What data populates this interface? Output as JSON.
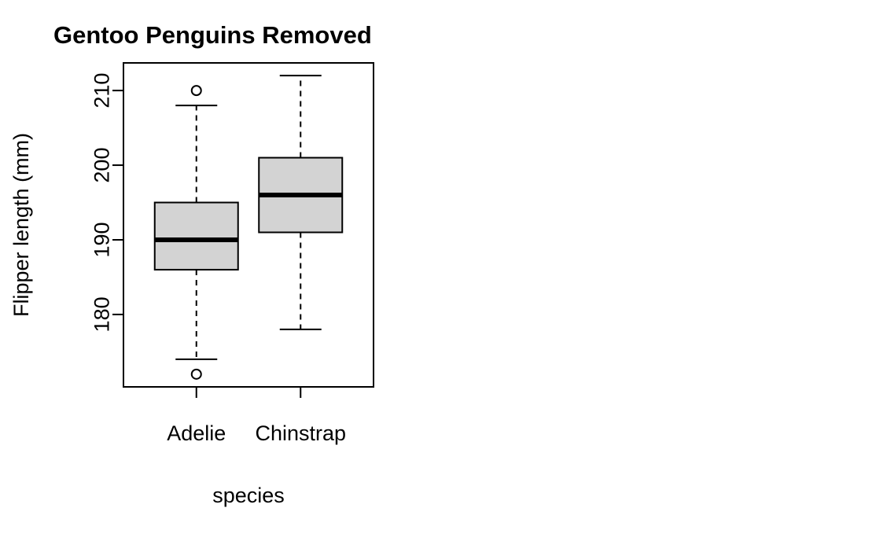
{
  "chart_data": {
    "type": "boxplot",
    "title": "Gentoo Penguins Removed",
    "xlabel": "species",
    "ylabel": "Flipper length (mm)",
    "categories": [
      "Adelie",
      "Chinstrap"
    ],
    "ylim": [
      170.3,
      213.7
    ],
    "yticks": [
      180,
      190,
      200,
      210
    ],
    "grid": false,
    "legend": "none",
    "box_fill": "#d3d3d3",
    "line_color": "#000000",
    "boxes": [
      {
        "category": "Adelie",
        "whisker_low": 174,
        "q1": 186,
        "median": 190,
        "q3": 195,
        "whisker_high": 208,
        "outliers": [
          172,
          210
        ]
      },
      {
        "category": "Chinstrap",
        "whisker_low": 178,
        "q1": 191,
        "median": 196,
        "q3": 201,
        "whisker_high": 212,
        "outliers": []
      }
    ]
  }
}
